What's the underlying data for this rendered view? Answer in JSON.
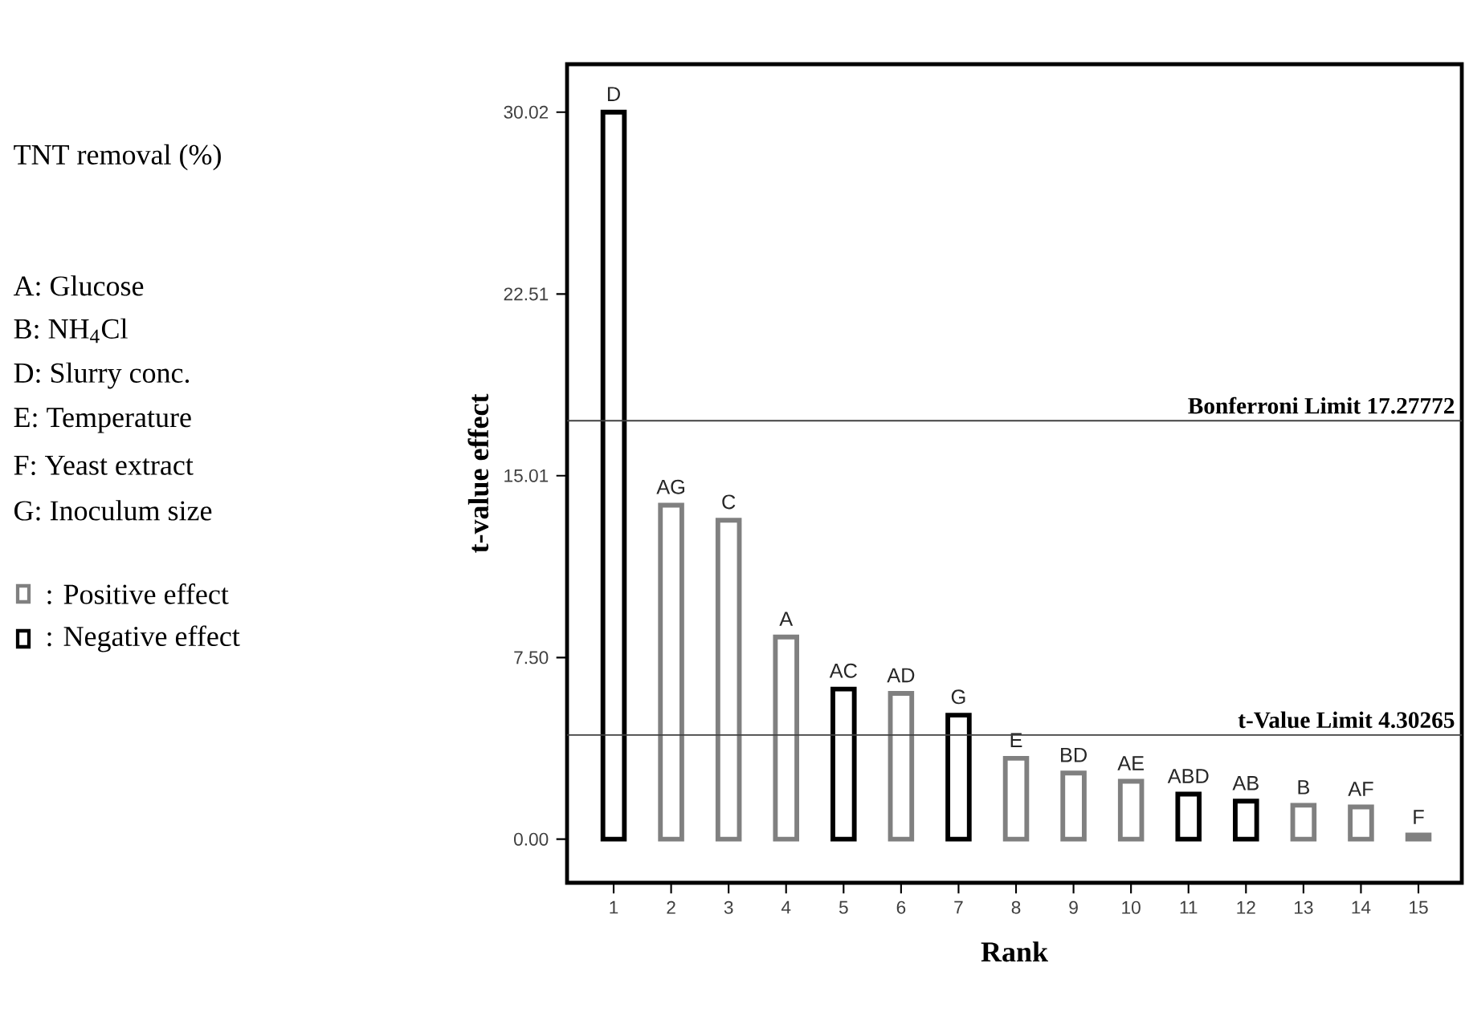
{
  "chart_data": {
    "type": "bar",
    "legend_title": "TNT removal (%)",
    "annotations": [
      "A: Glucose",
      "B: NH$_{4}$Cl",
      "D: Slurry conc.",
      "E: Temperature",
      "F: Yeast extract",
      "G: Inoculum size"
    ],
    "categories": [
      "1",
      "2",
      "3",
      "4",
      "5",
      "6",
      "7",
      "8",
      "9",
      "10",
      "11",
      "12",
      "13",
      "14",
      "15"
    ],
    "series": [
      {
        "name": ": Positive effect",
        "color": "#808080",
        "values": [
          null,
          13.79,
          13.17,
          8.35,
          null,
          6.02,
          null,
          3.34,
          2.73,
          2.39,
          null,
          null,
          1.4,
          1.33,
          0.17
        ],
        "value_labels": [
          null,
          "AG",
          "C",
          "A",
          null,
          "AD",
          null,
          "E",
          "BD",
          "AE",
          null,
          null,
          "B",
          "AF",
          "F"
        ]
      },
      {
        "name": ": Negative effect",
        "color": "#000000",
        "values": [
          30.02,
          null,
          null,
          null,
          6.2,
          null,
          5.12,
          null,
          null,
          null,
          1.86,
          1.57,
          null,
          null,
          null
        ],
        "value_labels": [
          "D",
          null,
          null,
          null,
          "AC",
          null,
          "G",
          null,
          null,
          null,
          "ABD",
          "AB",
          null,
          null,
          null
        ]
      }
    ],
    "ylim": [
      -1.8,
      32
    ],
    "yticks": [
      {
        "value": 0,
        "label": "0.00"
      },
      {
        "value": 7.5,
        "label": "7.50"
      },
      {
        "value": 15.01,
        "label": "15.01"
      },
      {
        "value": 22.51,
        "label": "22.51"
      },
      {
        "value": 30.02,
        "label": "30.02"
      }
    ],
    "xlabel": "Rank",
    "ylabel": "t-value effect",
    "ref_lines": [
      {
        "axis": "y",
        "value": 17.27772,
        "label": "Bonferroni Limit 17.27772",
        "color": "#404040"
      },
      {
        "axis": "y",
        "value": 4.30265,
        "label": "t-Value Limit 4.30265",
        "color": "#404040"
      }
    ],
    "legend": "left"
  }
}
